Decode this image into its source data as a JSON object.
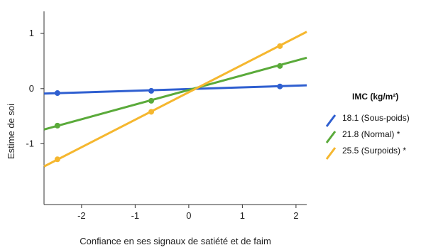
{
  "chart_data": {
    "type": "line",
    "xlabel": "Confiance en ses signaux de satiété et de faim",
    "ylabel": "Estime de soi",
    "xlim": [
      -2.7,
      2.2
    ],
    "ylim": [
      -2.1,
      1.4
    ],
    "x_ticks": [
      -2,
      -1,
      0,
      1,
      2
    ],
    "y_ticks": [
      -1,
      0,
      1
    ],
    "x_tick_labels": [
      "-2",
      "-1",
      "0",
      "1",
      "2"
    ],
    "y_tick_labels": [
      "-1",
      "0",
      "1"
    ],
    "legend": {
      "title": "IMC (kg/m²)",
      "position": "right"
    },
    "series": [
      {
        "name": "18.1 (Sous-poids)",
        "color": "#2f5fd0",
        "line": [
          [
            -2.7,
            -0.09
          ],
          [
            2.2,
            0.06
          ]
        ],
        "points": [
          [
            -2.45,
            -0.08
          ],
          [
            -0.7,
            -0.04
          ],
          [
            1.7,
            0.04
          ]
        ]
      },
      {
        "name": "21.8 (Normal) *",
        "color": "#5aaa3a",
        "line": [
          [
            -2.7,
            -0.74
          ],
          [
            2.2,
            0.56
          ]
        ],
        "points": [
          [
            -2.45,
            -0.67
          ],
          [
            -0.7,
            -0.22
          ],
          [
            1.7,
            0.41
          ]
        ]
      },
      {
        "name": "25.5 (Surpoids) *",
        "color": "#f5b72f",
        "line": [
          [
            -2.7,
            -1.41
          ],
          [
            2.2,
            1.03
          ]
        ],
        "points": [
          [
            -2.45,
            -1.28
          ],
          [
            -0.7,
            -0.42
          ],
          [
            1.7,
            0.77
          ]
        ]
      }
    ]
  }
}
